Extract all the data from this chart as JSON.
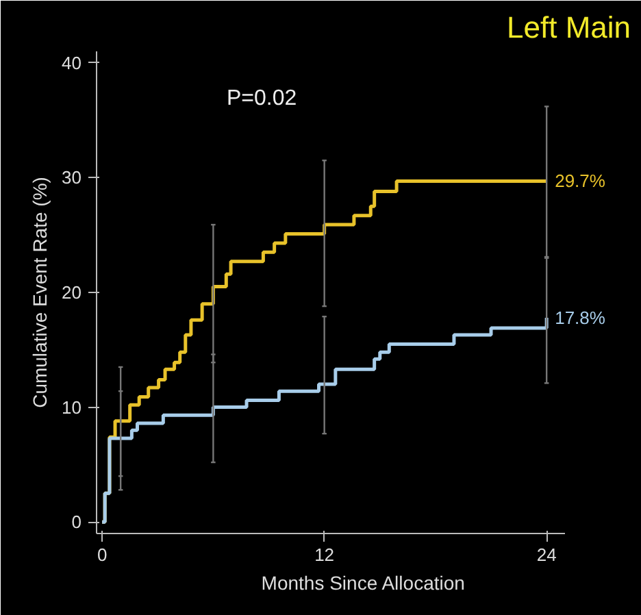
{
  "chart_data": {
    "type": "step",
    "title": "Left Main",
    "xlabel": "Months Since Allocation",
    "ylabel": "Cumulative Event Rate (%)",
    "xlim": [
      -0.3,
      25
    ],
    "ylim": [
      -1,
      41
    ],
    "xticks": [
      0,
      12,
      24
    ],
    "yticks": [
      0,
      10,
      20,
      30,
      40
    ],
    "grid": false,
    "series": [
      {
        "color": "#e8c22a",
        "x": [
          0,
          0.15,
          0.4,
          0.7,
          1,
          1.5,
          2.0,
          2.5,
          3.05,
          3.4,
          3.9,
          4.2,
          4.5,
          4.8,
          5.4,
          6,
          6.7,
          6.95,
          8.7,
          9.3,
          9.9,
          12,
          13.6,
          14.5,
          14.7,
          15.9,
          24
        ],
        "values": [
          0,
          2.5,
          7.4,
          8.8,
          8.8,
          10.2,
          10.9,
          11.7,
          12.4,
          13.3,
          13.9,
          14.8,
          16.3,
          17.6,
          19.0,
          20.5,
          21.6,
          22.7,
          23.5,
          24.3,
          25.1,
          25.9,
          26.7,
          27.5,
          28.8,
          29.7,
          29.7
        ],
        "errors": [
          null,
          null,
          null,
          null,
          [
            4.0,
            13.5
          ],
          null,
          null,
          null,
          null,
          null,
          null,
          null,
          null,
          null,
          null,
          [
            13.9,
            25.9
          ],
          null,
          null,
          null,
          null,
          null,
          [
            18.8,
            31.5
          ],
          null,
          null,
          null,
          null,
          [
            23.1,
            36.2
          ]
        ]
      },
      {
        "color": "#a8cdea",
        "x": [
          0,
          0.15,
          0.4,
          1,
          1.6,
          1.9,
          3.3,
          6,
          7.8,
          9.55,
          11.7,
          12,
          12.6,
          14.7,
          15,
          15.5,
          19,
          21,
          24
        ],
        "values": [
          0,
          2.5,
          7.3,
          7.3,
          8.0,
          8.6,
          9.3,
          10.0,
          10.6,
          11.4,
          12.0,
          12.0,
          13.3,
          14.2,
          14.8,
          15.5,
          16.3,
          16.9,
          17.8
        ],
        "errors": [
          null,
          null,
          null,
          [
            2.8,
            11.4
          ],
          null,
          null,
          null,
          [
            5.2,
            14.6
          ],
          null,
          null,
          null,
          [
            7.7,
            17.9
          ],
          null,
          null,
          null,
          null,
          null,
          null,
          [
            12.1,
            23.0
          ]
        ]
      }
    ],
    "annotations": [
      "P=0.02",
      {
        "text": "29.7%",
        "x": 24,
        "y": 29.7
      },
      {
        "text": "17.8%",
        "x": 24,
        "y": 17.8
      }
    ]
  }
}
